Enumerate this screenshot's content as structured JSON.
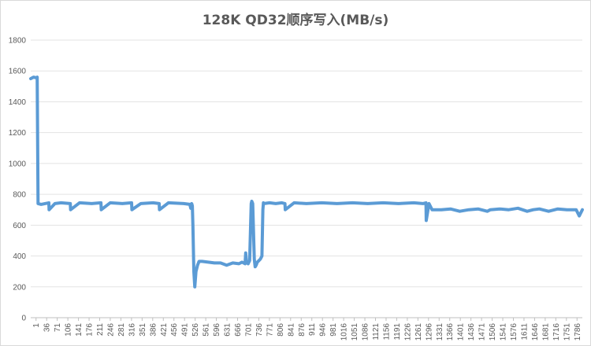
{
  "chart_data": {
    "type": "line",
    "title": "128K QD32顺序写入(MB/s)",
    "xlabel": "",
    "ylabel": "",
    "ylim": [
      0,
      1800
    ],
    "y_ticks": [
      0,
      200,
      400,
      600,
      800,
      1000,
      1200,
      1400,
      1600,
      1800
    ],
    "x_tick_labels": [
      "1",
      "36",
      "71",
      "106",
      "141",
      "176",
      "211",
      "246",
      "281",
      "316",
      "351",
      "386",
      "421",
      "456",
      "491",
      "526",
      "561",
      "596",
      "631",
      "666",
      "701",
      "736",
      "771",
      "806",
      "841",
      "876",
      "911",
      "946",
      "981",
      "1016",
      "1051",
      "1086",
      "1121",
      "1156",
      "1191",
      "1226",
      "1261",
      "1296",
      "1331",
      "1366",
      "1401",
      "1436",
      "1471",
      "1506",
      "1541",
      "1576",
      "1611",
      "1646",
      "1681",
      "1716",
      "1751",
      "1786"
    ],
    "xlim": [
      1,
      1800
    ],
    "grid": "horizontal",
    "legend": "none",
    "series": [
      {
        "color": "#5b9bd5",
        "x": [
          1,
          10,
          20,
          22,
          25,
          35,
          60,
          61,
          80,
          100,
          130,
          131,
          160,
          200,
          230,
          231,
          260,
          300,
          330,
          331,
          360,
          400,
          420,
          421,
          450,
          500,
          520,
          523,
          526,
          528,
          530,
          533,
          536,
          540,
          545,
          550,
          560,
          580,
          600,
          620,
          640,
          660,
          680,
          690,
          700,
          702,
          705,
          710,
          715,
          720,
          722,
          725,
          730,
          733,
          736,
          738,
          740,
          745,
          750,
          755,
          758,
          760,
          762,
          780,
          800,
          820,
          830,
          831,
          860,
          900,
          950,
          1000,
          1050,
          1100,
          1150,
          1200,
          1250,
          1280,
          1290,
          1291,
          1300,
          1310,
          1340,
          1370,
          1380,
          1400,
          1430,
          1460,
          1490,
          1500,
          1530,
          1560,
          1590,
          1620,
          1640,
          1660,
          1690,
          1720,
          1750,
          1780,
          1790,
          1800
        ],
        "y": [
          1550,
          1560,
          1555,
          1560,
          740,
          735,
          745,
          700,
          740,
          745,
          740,
          700,
          745,
          740,
          745,
          700,
          745,
          740,
          745,
          700,
          740,
          745,
          740,
          700,
          745,
          740,
          735,
          710,
          740,
          725,
          600,
          300,
          200,
          300,
          340,
          365,
          365,
          360,
          355,
          355,
          340,
          355,
          350,
          360,
          350,
          420,
          360,
          350,
          370,
          740,
          755,
          740,
          380,
          330,
          340,
          350,
          360,
          370,
          380,
          400,
          700,
          745,
          740,
          745,
          740,
          745,
          740,
          700,
          745,
          740,
          745,
          740,
          745,
          740,
          745,
          740,
          745,
          740,
          745,
          630,
          740,
          700,
          700,
          705,
          700,
          690,
          700,
          705,
          690,
          700,
          705,
          700,
          710,
          690,
          700,
          705,
          690,
          705,
          700,
          700,
          660,
          700
        ]
      }
    ]
  }
}
